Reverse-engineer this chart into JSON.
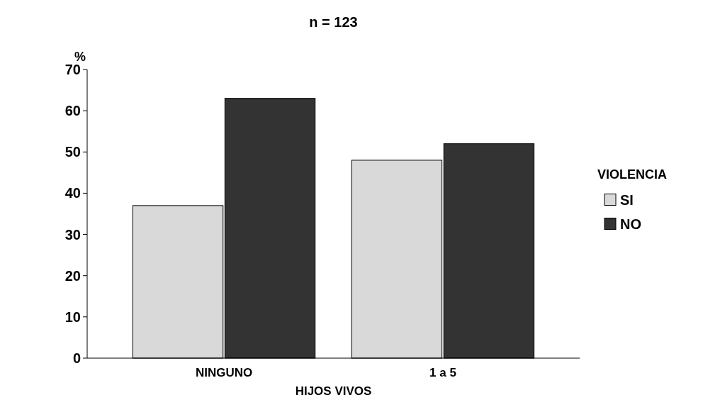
{
  "chart_data": {
    "type": "bar",
    "title": "n = 123",
    "xlabel": "HIJOS VIVOS",
    "ylabel": "%",
    "legend_title": "VIOLENCIA",
    "categories": [
      "NINGUNO",
      "1 a 5"
    ],
    "series": [
      {
        "name": "SI",
        "color": "#d9d9d9",
        "values": [
          37,
          48
        ]
      },
      {
        "name": "NO",
        "color": "#333333",
        "values": [
          63,
          52
        ]
      }
    ],
    "ylim": [
      0,
      70
    ],
    "yticks": [
      0,
      10,
      20,
      30,
      40,
      50,
      60,
      70
    ],
    "grid": false,
    "legend": "right"
  }
}
